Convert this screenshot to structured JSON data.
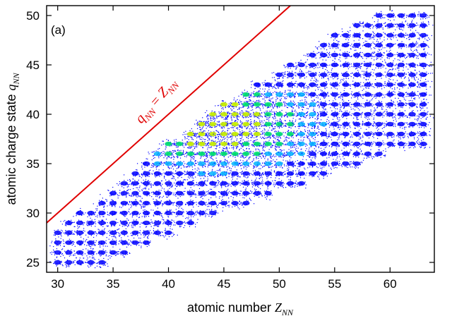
{
  "chart_data": {
    "type": "scatter",
    "panel_label": "(a)",
    "xlabel": {
      "prefix": "atomic number ",
      "symbol": "Z",
      "subscript": "NN"
    },
    "ylabel": {
      "prefix": "atomic charge state ",
      "symbol": "q",
      "subscript": "NN"
    },
    "xlim": [
      29,
      64
    ],
    "ylim": [
      24,
      51
    ],
    "xticks": [
      30,
      35,
      40,
      45,
      50,
      55,
      60
    ],
    "yticks": [
      25,
      30,
      35,
      40,
      45,
      50
    ],
    "grid": false,
    "point_color": "#0000ff",
    "colormap": [
      "#0000ff",
      "#00b4ff",
      "#00e070",
      "#c8f000"
    ],
    "reference_line": {
      "label_symbol_q": "q",
      "label_sub_q": "NN",
      "label_eq": " = ",
      "label_symbol_z": "Z",
      "label_sub_z": "NN",
      "color": "#e00000",
      "x": [
        29,
        51
      ],
      "y": [
        29,
        51
      ]
    },
    "distribution": {
      "x_range": [
        30,
        63
      ],
      "lower_q_by_z": [
        [
          30,
          25
        ],
        [
          35,
          25.5
        ],
        [
          40,
          28
        ],
        [
          45,
          30.5
        ],
        [
          50,
          32.5
        ],
        [
          55,
          34.5
        ],
        [
          60,
          36.5
        ],
        [
          63,
          37
        ]
      ],
      "upper_q_by_z": [
        [
          30,
          28
        ],
        [
          35,
          32
        ],
        [
          40,
          36.5
        ],
        [
          45,
          40.5
        ],
        [
          50,
          44
        ],
        [
          55,
          47.5
        ],
        [
          60,
          50
        ],
        [
          63,
          50
        ]
      ],
      "density_peak": {
        "z": 44,
        "q": 39
      },
      "peak_region_z": [
        39,
        56
      ],
      "peak_region_q": [
        34,
        42
      ]
    }
  }
}
